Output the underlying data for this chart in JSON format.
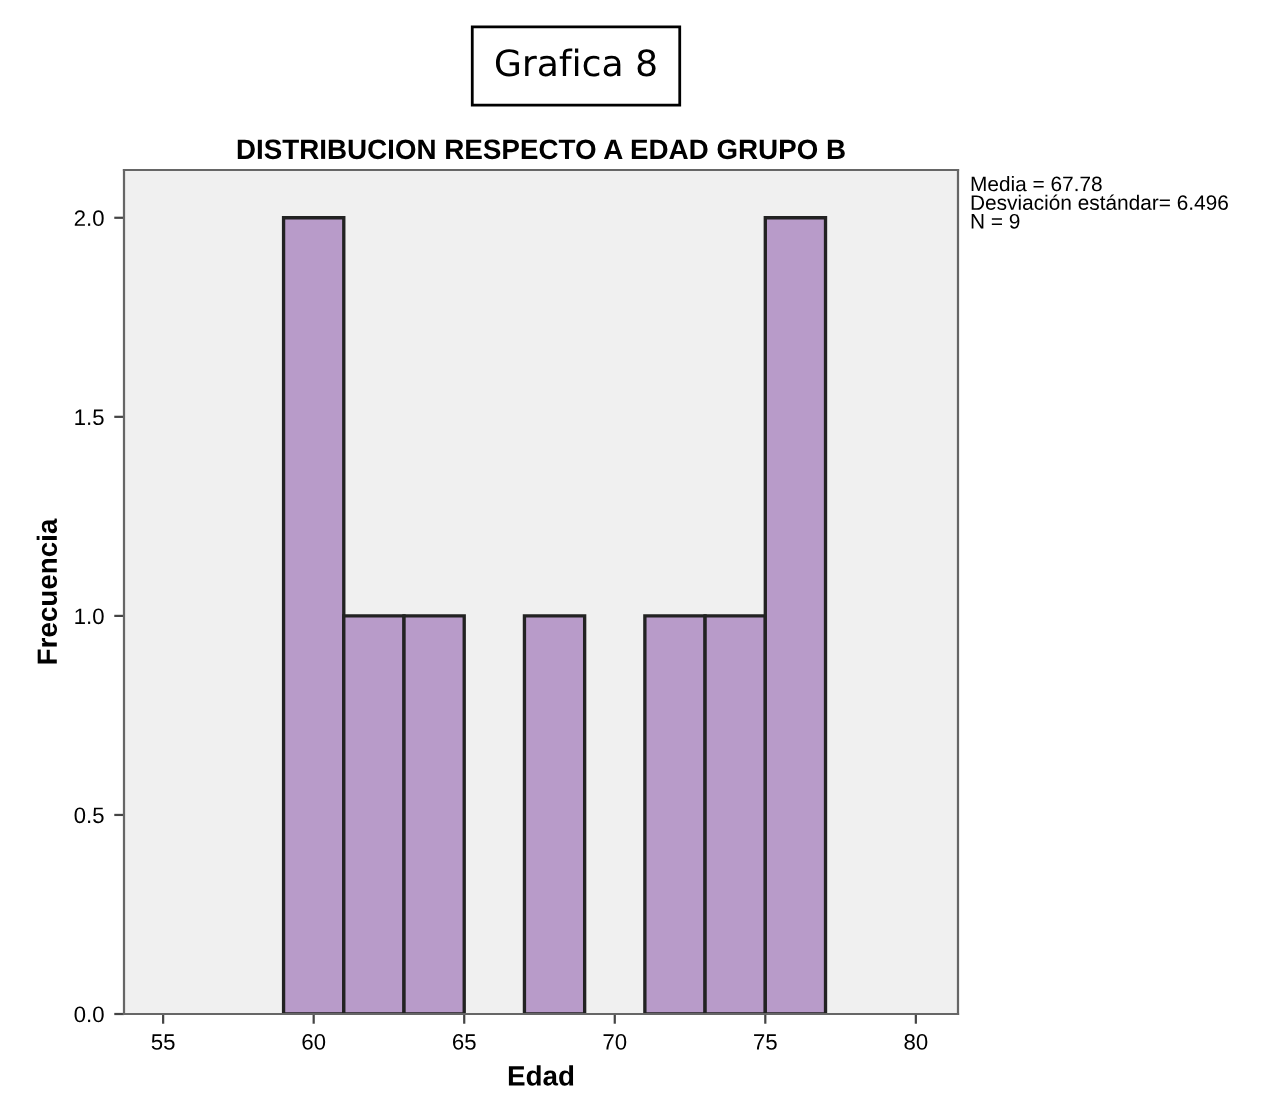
{
  "chart_data": {
    "type": "histogram",
    "title": "Grafica 8",
    "subtitle": "DISTRIBUCION RESPECTO A EDAD GRUPO B",
    "xlabel": "Edad",
    "ylabel": "Frecuencia",
    "bins": [
      59,
      61,
      63,
      65,
      67,
      69,
      71,
      73,
      75,
      77
    ],
    "values": [
      2,
      1,
      1,
      0,
      1,
      0,
      1,
      1,
      2
    ],
    "color": "#b89bc9",
    "xlim": [
      53.7,
      81.4
    ],
    "xticks": [
      55,
      60,
      65,
      70,
      75,
      80
    ],
    "ylim": [
      0,
      2.12
    ],
    "yticks": [
      {
        "value": 0,
        "label": "0.0"
      },
      {
        "value": 0.5,
        "label": "0.5"
      },
      {
        "value": 1,
        "label": "1.0"
      },
      {
        "value": 1.5,
        "label": "1.5"
      },
      {
        "value": 2,
        "label": "2.0"
      }
    ],
    "annotations": [
      "Media = 67.78\nDesviación estándar= 6.496\nN = 9"
    ],
    "grid": false
  }
}
